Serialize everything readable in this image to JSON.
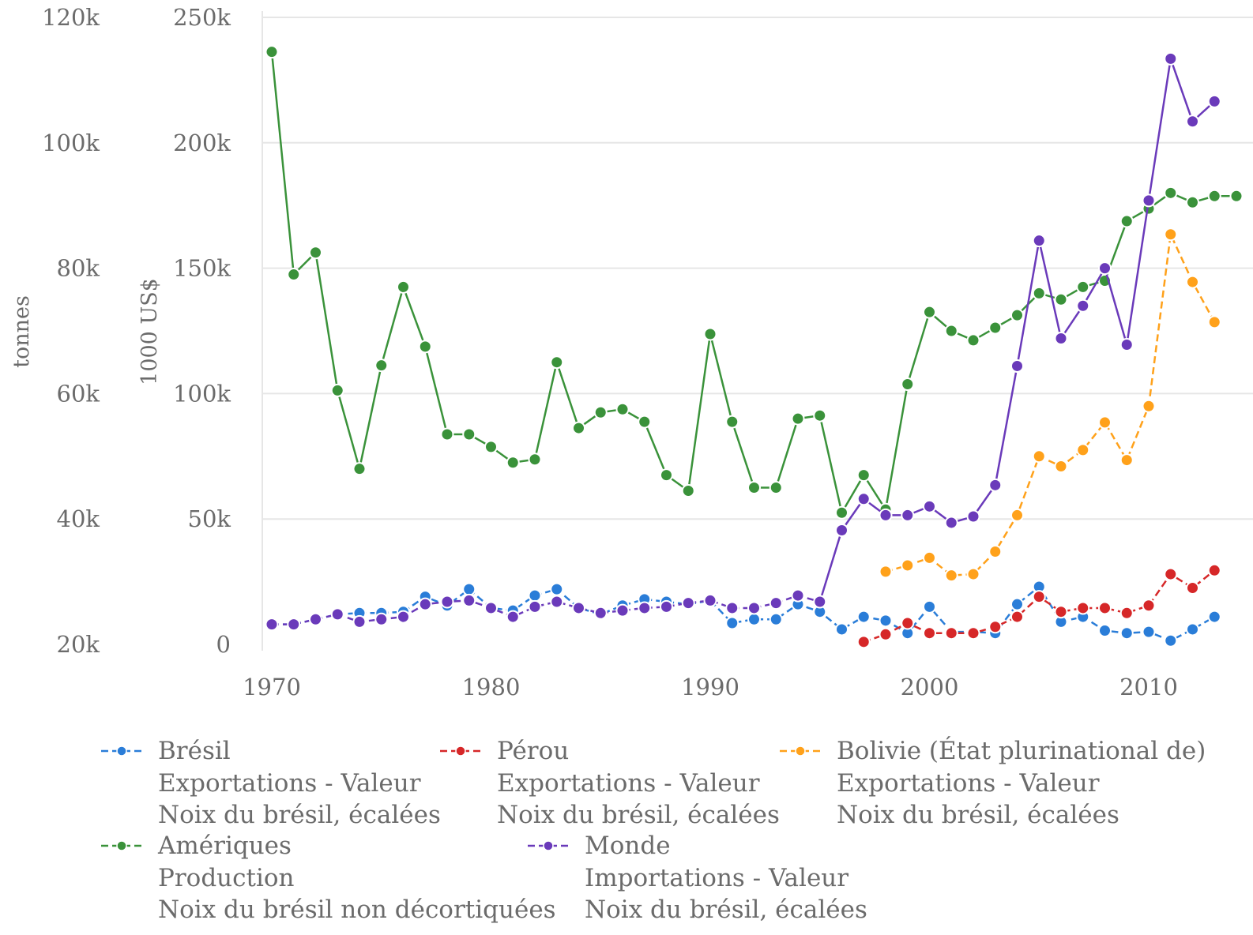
{
  "chart_data": {
    "type": "line",
    "title": "",
    "xlabel": "",
    "x_ticks": [
      "1970",
      "1980",
      "1990",
      "2000",
      "2010"
    ],
    "xlim": [
      1970,
      2014
    ],
    "y_left_outer": {
      "label": "tonnes",
      "ticks": [
        "20k",
        "40k",
        "60k",
        "80k",
        "100k",
        "120k"
      ],
      "range": [
        20000,
        120000
      ]
    },
    "y_left_inner": {
      "label": "1000 US$",
      "ticks": [
        "0",
        "50k",
        "100k",
        "150k",
        "200k",
        "250k"
      ],
      "range": [
        0,
        250000
      ]
    },
    "grid": true,
    "legend_position": "bottom",
    "series": [
      {
        "name": "Brésil",
        "lines": [
          "Brésil",
          "Exportations - Valeur",
          "Noix du brésil, écalées"
        ],
        "color": "#2a7dd8",
        "style": "dashed",
        "axis": "inner",
        "x": [
          1970,
          1971,
          1972,
          1973,
          1974,
          1975,
          1976,
          1977,
          1978,
          1979,
          1980,
          1981,
          1982,
          1983,
          1984,
          1985,
          1986,
          1987,
          1988,
          1989,
          1990,
          1991,
          1992,
          1993,
          1994,
          1995,
          1996,
          1997,
          1998,
          1999,
          2000,
          2001,
          2002,
          2003,
          2004,
          2005,
          2006,
          2007,
          2008,
          2009,
          2010,
          2011,
          2012,
          2013
        ],
        "y": [
          8000,
          8000,
          10000,
          12000,
          12500,
          12500,
          13000,
          19000,
          15500,
          22000,
          14500,
          13500,
          19500,
          22000,
          14500,
          12000,
          15500,
          18000,
          17000,
          16000,
          17500,
          8500,
          10000,
          10000,
          16000,
          13000,
          6000,
          11000,
          9500,
          4500,
          15000,
          5000,
          5000,
          4500,
          16000,
          23000,
          9000,
          11000,
          5500,
          4500,
          5000,
          1500,
          6000,
          11000
        ]
      },
      {
        "name": "Pérou",
        "lines": [
          "Pérou",
          "Exportations - Valeur",
          "Noix du brésil, écalées"
        ],
        "color": "#d62728",
        "style": "dashed",
        "axis": "inner",
        "x": [
          1997,
          1998,
          1999,
          2000,
          2001,
          2002,
          2003,
          2004,
          2005,
          2006,
          2007,
          2008,
          2009,
          2010,
          2011,
          2012,
          2013
        ],
        "y": [
          1000,
          4000,
          8500,
          4500,
          4500,
          4500,
          7000,
          11000,
          19000,
          13000,
          14500,
          14500,
          12500,
          15500,
          28000,
          22500,
          29500
        ]
      },
      {
        "name": "Bolivie (État plurinational de)",
        "lines": [
          "Bolivie (État plurinational de)",
          "Exportations - Valeur",
          "Noix du brésil, écalées"
        ],
        "color": "#ffa11a",
        "style": "dashed",
        "axis": "inner",
        "x": [
          1998,
          1999,
          2000,
          2001,
          2002,
          2003,
          2004,
          2005,
          2006,
          2007,
          2008,
          2009,
          2010,
          2011,
          2012,
          2013
        ],
        "y": [
          29000,
          31500,
          34500,
          27500,
          28000,
          37000,
          51500,
          75000,
          71000,
          77500,
          88500,
          73500,
          95000,
          163500,
          144500,
          128500
        ]
      },
      {
        "name": "Amériques",
        "lines": [
          "Amériques",
          "Production",
          "Noix du brésil non décortiquées"
        ],
        "color": "#3a923a",
        "style": "solid",
        "axis": "outer",
        "x": [
          1970,
          1971,
          1972,
          1973,
          1974,
          1975,
          1976,
          1977,
          1978,
          1979,
          1980,
          1981,
          1982,
          1983,
          1984,
          1985,
          1986,
          1987,
          1988,
          1989,
          1990,
          1991,
          1992,
          1993,
          1994,
          1995,
          1996,
          1997,
          1998,
          1999,
          2000,
          2001,
          2002,
          2003,
          2004,
          2005,
          2006,
          2007,
          2008,
          2009,
          2010,
          2011,
          2012,
          2013,
          2014
        ],
        "y": [
          114500,
          79000,
          82500,
          60500,
          48000,
          64500,
          77000,
          67500,
          53500,
          53500,
          51500,
          49000,
          49500,
          65000,
          54500,
          57000,
          57500,
          55500,
          47000,
          44500,
          69500,
          55500,
          45000,
          45000,
          56000,
          56500,
          41000,
          47000,
          41500,
          61500,
          73000,
          70000,
          68500,
          70500,
          72500,
          76000,
          75000,
          77000,
          78000,
          87500,
          89500,
          92000,
          90500,
          91500,
          91500
        ]
      },
      {
        "name": "Monde",
        "lines": [
          "Monde",
          "Importations - Valeur",
          "Noix du brésil, écalées"
        ],
        "color": "#6a3aba",
        "style": "dashed-solid",
        "axis": "inner",
        "x": [
          1970,
          1971,
          1972,
          1973,
          1974,
          1975,
          1976,
          1977,
          1978,
          1979,
          1980,
          1981,
          1982,
          1983,
          1984,
          1985,
          1986,
          1987,
          1988,
          1989,
          1990,
          1991,
          1992,
          1993,
          1994,
          1995,
          1996,
          1997,
          1998,
          1999,
          2000,
          2001,
          2002,
          2003,
          2004,
          2005,
          2006,
          2007,
          2008,
          2009,
          2010,
          2011,
          2012,
          2013
        ],
        "y": [
          8000,
          8000,
          10000,
          12000,
          9000,
          10000,
          11000,
          16000,
          17000,
          17500,
          14500,
          11000,
          15000,
          17000,
          14500,
          12500,
          13500,
          14500,
          15000,
          16500,
          17500,
          14500,
          14500,
          16500,
          19500,
          17000,
          45500,
          58000,
          51500,
          51500,
          55000,
          48500,
          51000,
          63500,
          111000,
          161000,
          122000,
          135000,
          150000,
          119500,
          177000,
          233500,
          208500,
          216500
        ]
      }
    ]
  }
}
